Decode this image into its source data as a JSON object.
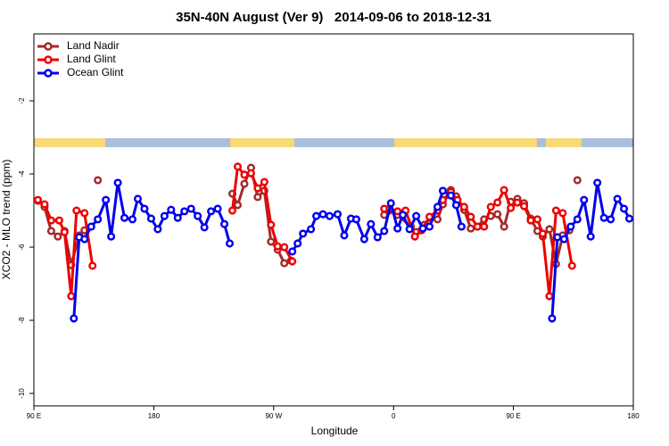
{
  "chart_data": {
    "type": "line",
    "title": "35N-40N August (Ver 9)   2014-09-06 to 2018-12-31",
    "xlabel": "Longitude",
    "ylabel": "XCO2 - MLO trend (ppm)",
    "xlim": [
      90,
      540
    ],
    "ylim": [
      -10.34,
      -0.17
    ],
    "xticks": [
      {
        "value": 90,
        "label": "90 E"
      },
      {
        "value": 180,
        "label": "180"
      },
      {
        "value": 270,
        "label": "90 W"
      },
      {
        "value": 360,
        "label": "0"
      },
      {
        "value": 450,
        "label": "90 E"
      },
      {
        "value": 540,
        "label": "180"
      }
    ],
    "yticks": [
      -10,
      -8,
      -6,
      -4,
      -2
    ],
    "legend": "upper left",
    "series": [
      {
        "name": "Land Nadir",
        "color": "#a52a2a",
        "x": [
          93,
          98,
          103,
          108,
          113,
          118,
          124,
          128,
          null,
          138,
          null,
          239,
          243,
          248,
          253,
          258,
          263,
          268,
          273,
          278,
          283,
          null,
          353,
          357,
          363,
          373,
          377,
          383,
          388,
          393,
          397,
          403,
          407,
          413,
          418,
          423,
          428,
          433,
          438,
          443,
          448,
          453,
          458,
          463,
          468,
          472,
          477,
          482,
          487,
          492,
          null,
          498
        ],
        "values": [
          -4.73,
          -4.9,
          -5.56,
          -5.71,
          -5.56,
          -6.49,
          -5.68,
          -5.54,
          null,
          -4.17,
          null,
          -4.54,
          -4.85,
          -4.27,
          -3.83,
          -4.63,
          -4.46,
          -5.85,
          -6.07,
          -6.44,
          -6.37,
          null,
          -5.12,
          -5.0,
          -5.12,
          -5.44,
          -5.59,
          -5.39,
          -5.2,
          -5.24,
          -4.83,
          -4.44,
          -4.61,
          -4.98,
          -5.49,
          -5.44,
          -5.24,
          -5.15,
          -5.1,
          -5.44,
          -4.76,
          -4.68,
          -4.8,
          -5.22,
          -5.56,
          -5.71,
          -5.51,
          -6.46,
          -5.68,
          -5.54,
          null,
          -4.17
        ]
      },
      {
        "name": "Land Glint",
        "color": "#ee0000",
        "x": [
          93,
          98,
          103,
          109,
          113,
          118,
          122,
          128,
          134,
          null,
          239,
          243,
          248,
          253,
          258,
          263,
          268,
          273,
          278,
          284,
          null,
          353,
          357,
          363,
          369,
          376,
          381,
          387,
          393,
          397,
          403,
          408,
          413,
          418,
          423,
          428,
          433,
          438,
          443,
          448,
          453,
          458,
          463,
          468,
          472,
          477,
          482,
          487,
          494
        ],
        "values": [
          -4.71,
          -4.83,
          -5.27,
          -5.27,
          -5.59,
          -7.34,
          -5.0,
          -5.07,
          -6.51,
          null,
          -5.0,
          -3.8,
          -4.02,
          -3.98,
          -4.39,
          -4.22,
          -5.39,
          -5.98,
          -6.0,
          -6.39,
          null,
          -4.95,
          -4.95,
          -5.02,
          -5.0,
          -5.71,
          -5.54,
          -5.17,
          -5.0,
          -4.71,
          -4.49,
          -4.71,
          -4.9,
          -5.17,
          -5.44,
          -5.44,
          -4.9,
          -4.78,
          -4.44,
          -4.93,
          -4.78,
          -4.88,
          -5.27,
          -5.24,
          -5.63,
          -7.34,
          -5.0,
          -5.07,
          -6.51
        ]
      },
      {
        "name": "Ocean Glint",
        "color": "#0000ee",
        "x": [
          120,
          124,
          128,
          133,
          138,
          144,
          148,
          153,
          158,
          164,
          168,
          173,
          178,
          183,
          188,
          193,
          198,
          203,
          208,
          213,
          218,
          223,
          228,
          233,
          237,
          null,
          284,
          288,
          292,
          298,
          302,
          307,
          312,
          318,
          323,
          328,
          332,
          338,
          343,
          348,
          353,
          358,
          363,
          367,
          372,
          377,
          382,
          387,
          393,
          397,
          403,
          407,
          411,
          null,
          479,
          483,
          488,
          493,
          498,
          503,
          508,
          513,
          518,
          523,
          528,
          533,
          537
        ],
        "values": [
          -7.95,
          -5.73,
          -5.78,
          -5.44,
          -5.24,
          -4.71,
          -5.71,
          -4.24,
          -5.2,
          -5.24,
          -4.68,
          -4.95,
          -5.22,
          -5.51,
          -5.15,
          -4.98,
          -5.2,
          -5.02,
          -4.95,
          -5.15,
          -5.46,
          -5.02,
          -4.95,
          -5.37,
          -5.9,
          null,
          -6.12,
          -5.9,
          -5.63,
          -5.51,
          -5.15,
          -5.1,
          -5.15,
          -5.1,
          -5.68,
          -5.22,
          -5.24,
          -5.78,
          -5.37,
          -5.73,
          -5.56,
          -4.8,
          -5.49,
          -5.12,
          -5.51,
          -5.15,
          -5.49,
          -5.44,
          -4.9,
          -4.46,
          -4.59,
          -4.85,
          -5.44,
          null,
          -7.95,
          -5.73,
          -5.78,
          -5.44,
          -5.24,
          -4.71,
          -5.71,
          -4.24,
          -5.2,
          -5.24,
          -4.68,
          -4.95,
          -5.22
        ]
      }
    ]
  }
}
